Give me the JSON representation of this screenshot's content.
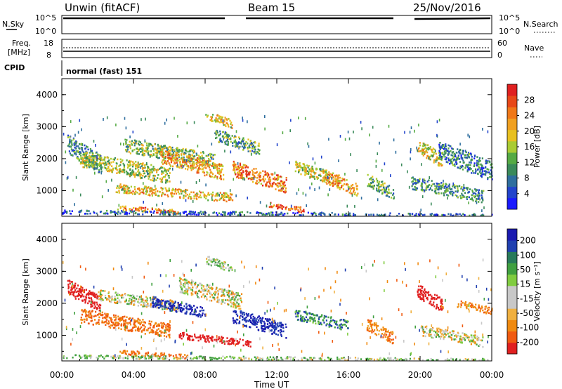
{
  "header": {
    "station": "Unwin (fitACF)",
    "beam": "Beam 15",
    "date": "25/Nov/2016"
  },
  "strip_labels": {
    "nsky": "N.Sky",
    "nsearch": "N.Search",
    "freq_line1": "Freq.",
    "freq_line2": "[MHz]",
    "nave": "Nave",
    "cpid": "CPID",
    "cpid_value": "normal (fast) 151"
  },
  "strip_ticks": {
    "noise_top_left": "10^5",
    "noise_bottom_left": "10^0",
    "noise_top_right": "10^5",
    "noise_bottom_right": "10^0",
    "freq_top": "18",
    "freq_bottom": "8",
    "nave_top": "60",
    "nave_bottom": "0"
  },
  "colors": {
    "power_scale": [
      "#1a1aff",
      "#2244cc",
      "#2e6e9e",
      "#3a8a5a",
      "#55aa44",
      "#aacc33",
      "#e8c020",
      "#f0a020",
      "#f07818",
      "#e84818",
      "#e02020"
    ],
    "velocity_scale": [
      "#e02020",
      "#f05a10",
      "#f08a10",
      "#f0b040",
      "#c8c8c8",
      "#c8c8c8",
      "#80cc40",
      "#40a040",
      "#287a5a",
      "#2040b0",
      "#1a1ab0"
    ]
  },
  "chart_data": [
    {
      "type": "heatmap",
      "title": "Power",
      "ylabel": "Slant Range [km]",
      "xlabel": "Time UT",
      "ylim": [
        200,
        4500
      ],
      "yticks": [
        "1000",
        "2000",
        "3000",
        "4000"
      ],
      "colorbar_label": "Power [dB]",
      "colorbar_ticks": [
        "4",
        "8",
        "12",
        "16",
        "20",
        "24",
        "28"
      ],
      "colorbar_range": [
        0,
        32
      ],
      "echo_regions": [
        {
          "t0": 0.3,
          "t1": 2.2,
          "r0": 1600,
          "r1": 2700,
          "value": 10
        },
        {
          "t0": 1.0,
          "t1": 6.0,
          "r0": 1300,
          "r1": 2200,
          "value": 16
        },
        {
          "t0": 3.5,
          "t1": 8.5,
          "r0": 1800,
          "r1": 2600,
          "value": 14
        },
        {
          "t0": 5.5,
          "t1": 9.0,
          "r0": 1400,
          "r1": 2300,
          "value": 22
        },
        {
          "t0": 8.0,
          "t1": 9.5,
          "r0": 3000,
          "r1": 3500,
          "value": 18
        },
        {
          "t0": 8.5,
          "t1": 11.0,
          "r0": 2200,
          "r1": 2900,
          "value": 12
        },
        {
          "t0": 9.5,
          "t1": 12.5,
          "r0": 1000,
          "r1": 1900,
          "value": 24
        },
        {
          "t0": 3.0,
          "t1": 9.5,
          "r0": 700,
          "r1": 1200,
          "value": 20
        },
        {
          "t0": 3.0,
          "t1": 6.5,
          "r0": 300,
          "r1": 550,
          "value": 24
        },
        {
          "t0": 11.5,
          "t1": 13.5,
          "r0": 350,
          "r1": 650,
          "value": 26
        },
        {
          "t0": 13.0,
          "t1": 15.5,
          "r0": 1200,
          "r1": 1900,
          "value": 18
        },
        {
          "t0": 14.5,
          "t1": 16.5,
          "r0": 900,
          "r1": 1600,
          "value": 22
        },
        {
          "t0": 17.0,
          "t1": 18.5,
          "r0": 800,
          "r1": 1500,
          "value": 12
        },
        {
          "t0": 19.8,
          "t1": 21.2,
          "r0": 1800,
          "r1": 2600,
          "value": 18
        },
        {
          "t0": 19.5,
          "t1": 23.5,
          "r0": 700,
          "r1": 1400,
          "value": 10
        },
        {
          "t0": 21.0,
          "t1": 24.0,
          "r0": 1400,
          "r1": 2500,
          "value": 8
        },
        {
          "t0": 0.0,
          "t1": 24.0,
          "r0": 200,
          "r1": 400,
          "value": 6
        }
      ]
    },
    {
      "type": "heatmap",
      "title": "Velocity",
      "ylabel": "Slant Range [km]",
      "xlabel": "Time UT",
      "ylim": [
        200,
        4500
      ],
      "yticks": [
        "1000",
        "2000",
        "3000",
        "4000"
      ],
      "colorbar_label": "Velocity [m s⁻¹]",
      "colorbar_ticks": [
        "200",
        "100",
        "50",
        "15",
        "-15",
        "-50",
        "-100",
        "-200"
      ],
      "echo_regions": [
        {
          "t0": 0.3,
          "t1": 2.2,
          "r0": 1800,
          "r1": 2700,
          "value": -200
        },
        {
          "t0": 1.0,
          "t1": 6.0,
          "r0": 1000,
          "r1": 1800,
          "value": -80
        },
        {
          "t0": 2.0,
          "t1": 6.5,
          "r0": 1800,
          "r1": 2400,
          "value": 0
        },
        {
          "t0": 5.0,
          "t1": 8.0,
          "r0": 1600,
          "r1": 2200,
          "value": 150
        },
        {
          "t0": 6.5,
          "t1": 10.0,
          "r0": 1900,
          "r1": 2800,
          "value": 0
        },
        {
          "t0": 8.0,
          "t1": 9.5,
          "r0": 3000,
          "r1": 3500,
          "value": 20
        },
        {
          "t0": 9.5,
          "t1": 12.5,
          "r0": 1000,
          "r1": 1800,
          "value": 150
        },
        {
          "t0": 6.5,
          "t1": 10.5,
          "r0": 700,
          "r1": 1100,
          "value": -200
        },
        {
          "t0": 3.0,
          "t1": 7.0,
          "r0": 300,
          "r1": 550,
          "value": -80
        },
        {
          "t0": 13.0,
          "t1": 16.0,
          "r0": 1200,
          "r1": 1800,
          "value": 70
        },
        {
          "t0": 17.0,
          "t1": 18.5,
          "r0": 800,
          "r1": 1500,
          "value": -60
        },
        {
          "t0": 19.8,
          "t1": 21.2,
          "r0": 1800,
          "r1": 2600,
          "value": -200
        },
        {
          "t0": 20.0,
          "t1": 23.5,
          "r0": 700,
          "r1": 1300,
          "value": 0
        },
        {
          "t0": 22.0,
          "t1": 24.0,
          "r0": 1700,
          "r1": 2100,
          "value": -60
        },
        {
          "t0": 0.0,
          "t1": 24.0,
          "r0": 200,
          "r1": 400,
          "value": 20
        }
      ]
    }
  ],
  "time_axis": {
    "label": "Time UT",
    "range": [
      0,
      24
    ],
    "ticks": [
      {
        "t": 0,
        "label": "00:00"
      },
      {
        "t": 4,
        "label": "04:00"
      },
      {
        "t": 8,
        "label": "08:00"
      },
      {
        "t": 12,
        "label": "12:00"
      },
      {
        "t": 16,
        "label": "16:00"
      },
      {
        "t": 20,
        "label": "20:00"
      },
      {
        "t": 24,
        "label": "00:00"
      }
    ]
  }
}
